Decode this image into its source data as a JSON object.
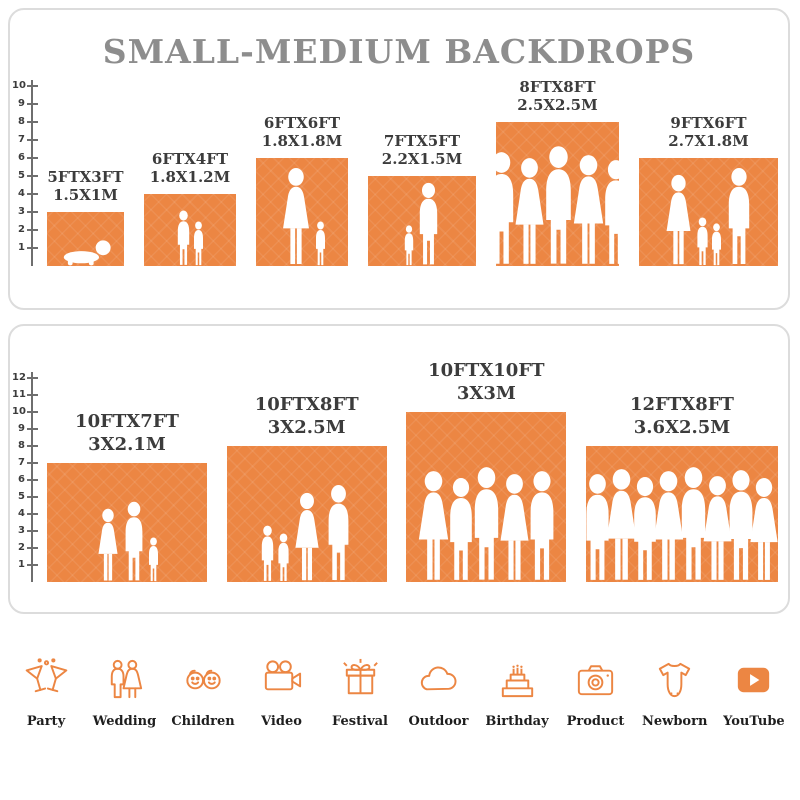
{
  "colors": {
    "accent": "#EC8643",
    "title_gray": "#8D8D8D",
    "label_dark": "#3C3C3C",
    "axis": "#6E6E6E",
    "silhouette": "#FFFFFF",
    "category_label": "#1E1E1E"
  },
  "chart_data": [
    {
      "type": "bar",
      "title": "SMALL-MEDIUM BACKDROPS",
      "xlabel": "",
      "ylabel": "",
      "ylim": [
        0,
        10
      ],
      "yticks": [
        1,
        2,
        3,
        4,
        5,
        6,
        7,
        8,
        9,
        10
      ],
      "grid": false,
      "legend": false,
      "bars": [
        {
          "size_ft": "5FTX3FT",
          "size_m": "1.5X1M",
          "width_ft": 5,
          "height_ft": 3,
          "silhouette": "crawling baby",
          "figures": [
            {
              "type": "baby",
              "rel_h": 0.5
            }
          ]
        },
        {
          "size_ft": "6FTX4FT",
          "size_m": "1.8X1.2M",
          "width_ft": 6,
          "height_ft": 4,
          "silhouette": "two children",
          "figures": [
            {
              "type": "child",
              "rel_h": 0.78
            },
            {
              "type": "child",
              "rel_h": 0.62
            }
          ]
        },
        {
          "size_ft": "6FTX6FT",
          "size_m": "1.8X1.8M",
          "width_ft": 6,
          "height_ft": 6,
          "silhouette": "mother and child",
          "figures": [
            {
              "type": "female",
              "rel_h": 0.92
            },
            {
              "type": "child",
              "rel_h": 0.42
            }
          ]
        },
        {
          "size_ft": "7FTX5FT",
          "size_m": "2.2X1.5M",
          "width_ft": 7,
          "height_ft": 5,
          "silhouette": "toddler and man",
          "figures": [
            {
              "type": "child",
              "rel_h": 0.45
            },
            {
              "type": "adult",
              "rel_h": 0.93
            }
          ]
        },
        {
          "size_ft": "8FTX8FT",
          "size_m": "2.5X2.5M",
          "width_ft": 8,
          "height_ft": 8,
          "silhouette": "group of five adults",
          "figures": [
            {
              "type": "adult",
              "rel_h": 0.8
            },
            {
              "type": "female",
              "rel_h": 0.76
            },
            {
              "type": "adult",
              "rel_h": 0.84
            },
            {
              "type": "female",
              "rel_h": 0.78
            },
            {
              "type": "adult",
              "rel_h": 0.74
            }
          ]
        },
        {
          "size_ft": "9FTX6FT",
          "size_m": "2.7X1.8M",
          "width_ft": 9,
          "height_ft": 6,
          "silhouette": "family of four",
          "figures": [
            {
              "type": "female",
              "rel_h": 0.85
            },
            {
              "type": "child",
              "rel_h": 0.45
            },
            {
              "type": "child",
              "rel_h": 0.4
            },
            {
              "type": "adult",
              "rel_h": 0.92
            }
          ]
        }
      ]
    },
    {
      "type": "bar",
      "title": "",
      "xlabel": "",
      "ylabel": "",
      "ylim": [
        0,
        12
      ],
      "yticks": [
        1,
        2,
        3,
        4,
        5,
        6,
        7,
        8,
        9,
        10,
        11,
        12
      ],
      "grid": false,
      "legend": false,
      "bars": [
        {
          "size_ft": "10FTX7FT",
          "size_m": "3X2.1M",
          "width_ft": 10,
          "height_ft": 7,
          "silhouette": "family of three",
          "figures": [
            {
              "type": "female",
              "rel_h": 0.62
            },
            {
              "type": "adult",
              "rel_h": 0.68
            },
            {
              "type": "child",
              "rel_h": 0.38
            }
          ]
        },
        {
          "size_ft": "10FTX8FT",
          "size_m": "3X2.5M",
          "width_ft": 10,
          "height_ft": 8,
          "silhouette": "family of four",
          "figures": [
            {
              "type": "child",
              "rel_h": 0.42
            },
            {
              "type": "child",
              "rel_h": 0.36
            },
            {
              "type": "female",
              "rel_h": 0.66
            },
            {
              "type": "adult",
              "rel_h": 0.72
            }
          ]
        },
        {
          "size_ft": "10FTX10FT",
          "size_m": "3X3M",
          "width_ft": 10,
          "height_ft": 10,
          "silhouette": "group of five adults",
          "figures": [
            {
              "type": "female",
              "rel_h": 0.66
            },
            {
              "type": "adult",
              "rel_h": 0.62
            },
            {
              "type": "adult",
              "rel_h": 0.68
            },
            {
              "type": "female",
              "rel_h": 0.64
            },
            {
              "type": "adult",
              "rel_h": 0.66
            }
          ]
        },
        {
          "size_ft": "12FTX8FT",
          "size_m": "3.6X2.5M",
          "width_ft": 12,
          "height_ft": 8,
          "silhouette": "crowd of eight",
          "figures": [
            {
              "type": "adult",
              "rel_h": 0.8
            },
            {
              "type": "female",
              "rel_h": 0.84
            },
            {
              "type": "adult",
              "rel_h": 0.78
            },
            {
              "type": "female",
              "rel_h": 0.82
            },
            {
              "type": "adult",
              "rel_h": 0.85
            },
            {
              "type": "female",
              "rel_h": 0.79
            },
            {
              "type": "adult",
              "rel_h": 0.83
            },
            {
              "type": "female",
              "rel_h": 0.77
            }
          ]
        }
      ]
    }
  ],
  "categories": [
    {
      "label": "Party",
      "icon": "party-icon"
    },
    {
      "label": "Wedding",
      "icon": "wedding-icon"
    },
    {
      "label": "Children",
      "icon": "children-icon"
    },
    {
      "label": "Video",
      "icon": "video-icon"
    },
    {
      "label": "Festival",
      "icon": "festival-icon"
    },
    {
      "label": "Outdoor",
      "icon": "outdoor-icon"
    },
    {
      "label": "Birthday",
      "icon": "birthday-icon"
    },
    {
      "label": "Product",
      "icon": "product-icon"
    },
    {
      "label": "Newborn",
      "icon": "newborn-icon"
    },
    {
      "label": "YouTube",
      "icon": "youtube-icon"
    }
  ]
}
